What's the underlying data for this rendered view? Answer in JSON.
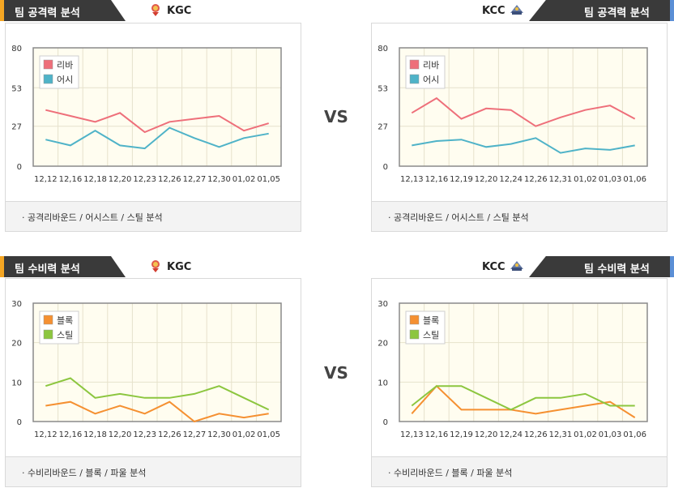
{
  "colors": {
    "rebound": "#ee6f7a",
    "assist": "#4fb3c8",
    "block": "#f59031",
    "steal": "#8cc63f",
    "accent_left": "#f5a623",
    "accent_right": "#5b8fd6"
  },
  "vs_label": "VS",
  "sections": [
    {
      "left": {
        "title": "팀 공격력 분석",
        "team": "KGC",
        "team_icon": "kgc-logo-icon"
      },
      "right": {
        "title": "팀 공격력 분석",
        "team": "KCC",
        "team_icon": "kcc-logo-icon"
      },
      "footer": "· 공격리바운드 / 어시스트 / 스틸 분석"
    },
    {
      "left": {
        "title": "팀 수비력 분석",
        "team": "KGC",
        "team_icon": "kgc-logo-icon"
      },
      "right": {
        "title": "팀 수비력 분석",
        "team": "KCC",
        "team_icon": "kcc-logo-icon"
      },
      "footer": "· 수비리바운드 / 블록 / 파울 분석"
    }
  ],
  "chart_data": [
    {
      "type": "line",
      "categories": [
        "12,12",
        "12,16",
        "12,18",
        "12,20",
        "12,23",
        "12,26",
        "12,27",
        "12,30",
        "01,02",
        "01,05"
      ],
      "yticks": [
        0,
        27,
        53,
        80
      ],
      "ylim": [
        0,
        80
      ],
      "legend": "top-left",
      "series": [
        {
          "name": "리바",
          "color": "#ee6f7a",
          "values": [
            38,
            34,
            30,
            36,
            23,
            30,
            32,
            34,
            24,
            29
          ]
        },
        {
          "name": "어시",
          "color": "#4fb3c8",
          "values": [
            18,
            14,
            24,
            14,
            12,
            26,
            19,
            13,
            19,
            22
          ]
        }
      ]
    },
    {
      "type": "line",
      "categories": [
        "12,13",
        "12,16",
        "12,19",
        "12,20",
        "12,24",
        "12,26",
        "12,31",
        "01,02",
        "01,03",
        "01,06"
      ],
      "yticks": [
        0,
        27,
        53,
        80
      ],
      "ylim": [
        0,
        80
      ],
      "legend": "top-left",
      "series": [
        {
          "name": "리바",
          "color": "#ee6f7a",
          "values": [
            36,
            46,
            32,
            39,
            38,
            27,
            33,
            38,
            41,
            32
          ]
        },
        {
          "name": "어시",
          "color": "#4fb3c8",
          "values": [
            14,
            17,
            18,
            13,
            15,
            19,
            9,
            12,
            11,
            14
          ]
        }
      ]
    },
    {
      "type": "line",
      "categories": [
        "12,12",
        "12,16",
        "12,18",
        "12,20",
        "12,23",
        "12,26",
        "12,27",
        "12,30",
        "01,02",
        "01,05"
      ],
      "yticks": [
        0,
        10,
        20,
        30
      ],
      "ylim": [
        0,
        30
      ],
      "legend": "top-left",
      "series": [
        {
          "name": "블록",
          "color": "#f59031",
          "values": [
            4,
            5,
            2,
            4,
            2,
            5,
            0,
            2,
            1,
            2
          ]
        },
        {
          "name": "스틸",
          "color": "#8cc63f",
          "values": [
            9,
            11,
            6,
            7,
            6,
            6,
            7,
            9,
            6,
            3
          ]
        }
      ]
    },
    {
      "type": "line",
      "categories": [
        "12,13",
        "12,16",
        "12,19",
        "12,20",
        "12,24",
        "12,26",
        "12,31",
        "01,02",
        "01,03",
        "01,06"
      ],
      "yticks": [
        0,
        10,
        20,
        30
      ],
      "ylim": [
        0,
        30
      ],
      "legend": "top-left",
      "series": [
        {
          "name": "블록",
          "color": "#f59031",
          "values": [
            2,
            9,
            3,
            3,
            3,
            2,
            3,
            4,
            5,
            1
          ]
        },
        {
          "name": "스틸",
          "color": "#8cc63f",
          "values": [
            4,
            9,
            9,
            6,
            3,
            6,
            6,
            7,
            4,
            4
          ]
        }
      ]
    }
  ]
}
